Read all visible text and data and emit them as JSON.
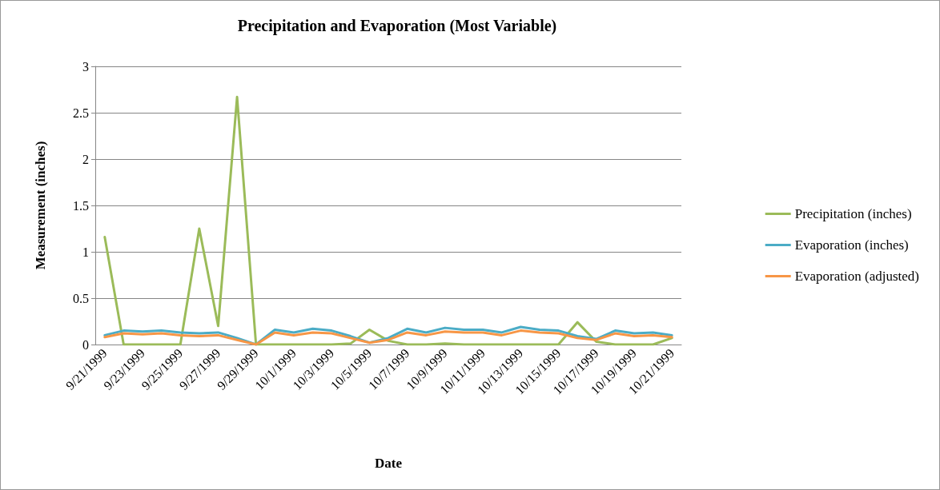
{
  "chart_data": {
    "type": "line",
    "title": "Precipitation and Evaporation (Most Variable)",
    "xlabel": "Date",
    "ylabel": "Measurement (inches)",
    "categories": [
      "9/21/1999",
      null,
      "9/23/1999",
      null,
      "9/25/1999",
      null,
      "9/27/1999",
      null,
      "9/29/1999",
      null,
      "10/1/1999",
      null,
      "10/3/1999",
      null,
      "10/5/1999",
      null,
      "10/7/1999",
      null,
      "10/9/1999",
      null,
      "10/11/1999",
      null,
      "10/13/1999",
      null,
      "10/15/1999",
      null,
      "10/17/1999",
      null,
      "10/19/1999",
      null,
      "10/21/1999"
    ],
    "series": [
      {
        "name": "Precipitation (inches)",
        "color": "#9bbb59",
        "values": [
          1.16,
          0,
          0,
          0,
          0,
          1.25,
          0.2,
          2.67,
          0,
          0,
          0,
          0,
          0,
          0.01,
          0.16,
          0.04,
          0,
          0,
          0.01,
          0,
          0,
          0,
          0,
          0,
          0,
          0.24,
          0.03,
          0,
          0,
          0,
          0.07
        ]
      },
      {
        "name": "Evaporation (inches)",
        "color": "#4bacc6",
        "values": [
          0.1,
          0.15,
          0.14,
          0.15,
          0.13,
          0.12,
          0.13,
          0.07,
          0,
          0.16,
          0.13,
          0.17,
          0.15,
          0.09,
          0.02,
          0.07,
          0.17,
          0.13,
          0.18,
          0.16,
          0.16,
          0.13,
          0.19,
          0.16,
          0.15,
          0.09,
          0.06,
          0.15,
          0.12,
          0.13,
          0.1
        ]
      },
      {
        "name": "Evaporation (adjusted)",
        "color": "#f79646",
        "values": [
          0.08,
          0.12,
          0.11,
          0.12,
          0.1,
          0.09,
          0.1,
          0.05,
          0,
          0.13,
          0.1,
          0.13,
          0.12,
          0.07,
          0.02,
          0.05,
          0.13,
          0.1,
          0.14,
          0.13,
          0.13,
          0.1,
          0.15,
          0.13,
          0.12,
          0.07,
          0.05,
          0.12,
          0.09,
          0.1,
          0.08
        ]
      }
    ],
    "ylim": [
      0,
      3
    ],
    "yticks": [
      0,
      0.5,
      1,
      1.5,
      2,
      2.5,
      3
    ],
    "grid": "y",
    "legend": "right",
    "marker": "none",
    "line_style": "solid"
  }
}
